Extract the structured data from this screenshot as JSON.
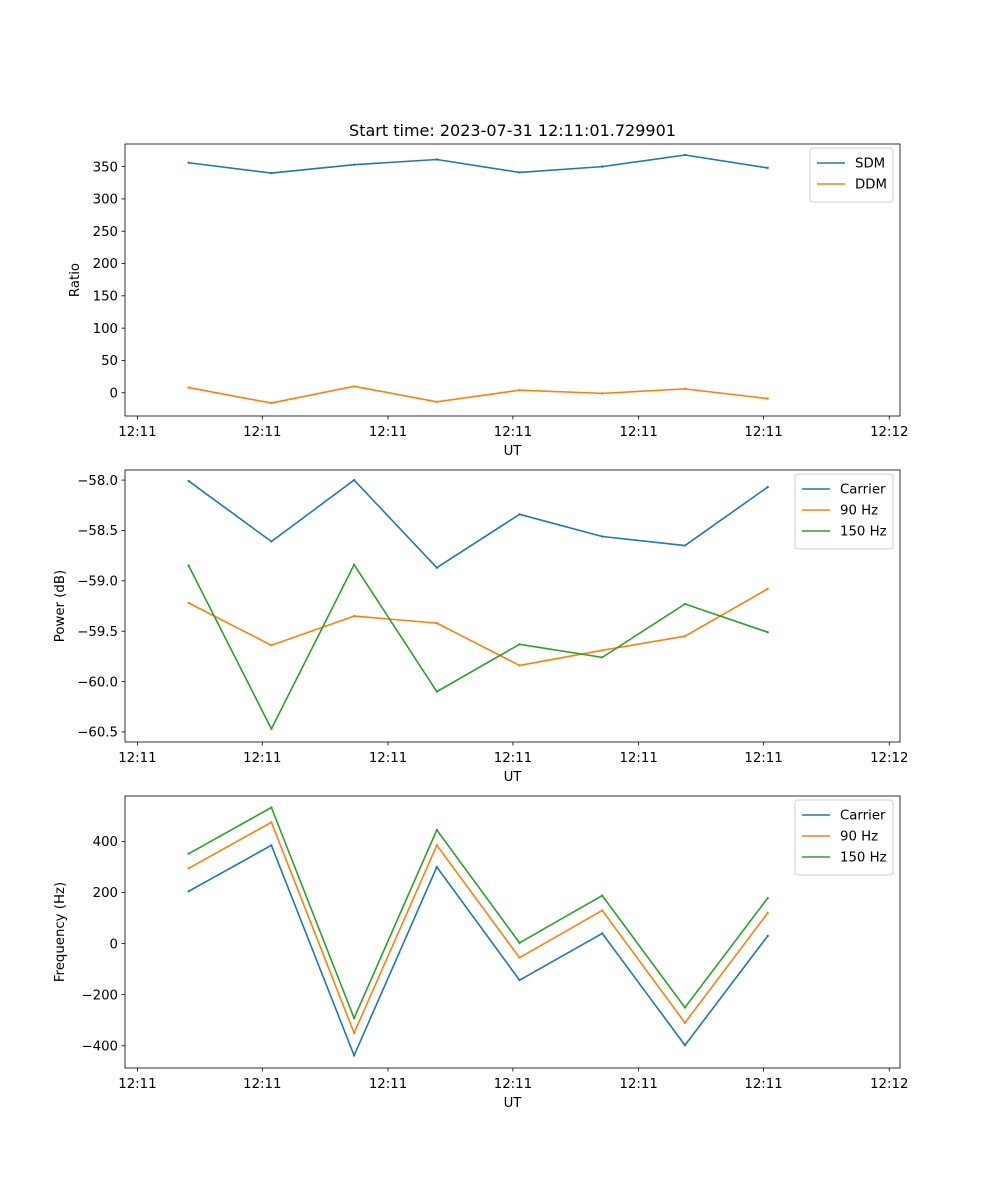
{
  "figure_title": "Start time: 2023-07-31 12:11:01.729901",
  "colors": {
    "blue": "#1f77b4",
    "orange": "#ff7f0e",
    "green": "#2ca02c"
  },
  "chart_data": [
    {
      "type": "line",
      "title": "Start time: 2023-07-31 12:11:01.729901",
      "xlabel": "UT",
      "ylabel": "Ratio",
      "xlim": [
        -0.77,
        8.6
      ],
      "ylim": [
        -36,
        385
      ],
      "xticks": [
        {
          "value": -0.62,
          "label": "12:11"
        },
        {
          "value": 0.89,
          "label": "12:11"
        },
        {
          "value": 2.41,
          "label": "12:11"
        },
        {
          "value": 3.92,
          "label": "12:11"
        },
        {
          "value": 5.44,
          "label": "12:11"
        },
        {
          "value": 6.95,
          "label": "12:11"
        },
        {
          "value": 8.47,
          "label": "12:12"
        }
      ],
      "yticks": [
        {
          "value": 0,
          "label": "0"
        },
        {
          "value": 50,
          "label": "50"
        },
        {
          "value": 100,
          "label": "100"
        },
        {
          "value": 150,
          "label": "150"
        },
        {
          "value": 200,
          "label": "200"
        },
        {
          "value": 250,
          "label": "250"
        },
        {
          "value": 300,
          "label": "300"
        },
        {
          "value": 350,
          "label": "350"
        }
      ],
      "x": [
        0,
        1,
        2,
        3,
        4,
        5,
        6,
        7
      ],
      "series": [
        {
          "name": "SDM",
          "color": "#1f77b4",
          "values": [
            356,
            340,
            353,
            361,
            341,
            350,
            368,
            348
          ]
        },
        {
          "name": "DDM",
          "color": "#ff7f0e",
          "values": [
            8,
            -16,
            10,
            -14,
            4,
            -1,
            6,
            -9
          ]
        }
      ],
      "legend": "upper right",
      "grid": false
    },
    {
      "type": "line",
      "title": "",
      "xlabel": "UT",
      "ylabel": "Power (dB)",
      "xlim": [
        -0.77,
        8.6
      ],
      "ylim": [
        -60.6,
        -57.9
      ],
      "xticks": [
        {
          "value": -0.62,
          "label": "12:11"
        },
        {
          "value": 0.89,
          "label": "12:11"
        },
        {
          "value": 2.41,
          "label": "12:11"
        },
        {
          "value": 3.92,
          "label": "12:11"
        },
        {
          "value": 5.44,
          "label": "12:11"
        },
        {
          "value": 6.95,
          "label": "12:11"
        },
        {
          "value": 8.47,
          "label": "12:12"
        }
      ],
      "yticks": [
        {
          "value": -60.5,
          "label": "−60.5"
        },
        {
          "value": -60.0,
          "label": "−60.0"
        },
        {
          "value": -59.5,
          "label": "−59.5"
        },
        {
          "value": -59.0,
          "label": "−59.0"
        },
        {
          "value": -58.5,
          "label": "−58.5"
        },
        {
          "value": -58.0,
          "label": "−58.0"
        }
      ],
      "x": [
        0,
        1,
        2,
        3,
        4,
        5,
        6,
        7
      ],
      "series": [
        {
          "name": "Carrier",
          "color": "#1f77b4",
          "values": [
            -58.01,
            -58.61,
            -58.0,
            -58.87,
            -58.34,
            -58.56,
            -58.65,
            -58.07
          ]
        },
        {
          "name": "90 Hz",
          "color": "#ff7f0e",
          "values": [
            -59.22,
            -59.64,
            -59.35,
            -59.42,
            -59.84,
            -59.69,
            -59.55,
            -59.08
          ]
        },
        {
          "name": "150 Hz",
          "color": "#2ca02c",
          "values": [
            -58.85,
            -60.47,
            -58.84,
            -60.1,
            -59.63,
            -59.76,
            -59.23,
            -59.51
          ]
        }
      ],
      "legend": "upper right",
      "grid": false
    },
    {
      "type": "line",
      "title": "",
      "xlabel": "UT",
      "ylabel": "Frequency (Hz)",
      "xlim": [
        -0.77,
        8.6
      ],
      "ylim": [
        -487,
        578
      ],
      "xticks": [
        {
          "value": -0.62,
          "label": "12:11"
        },
        {
          "value": 0.89,
          "label": "12:11"
        },
        {
          "value": 2.41,
          "label": "12:11"
        },
        {
          "value": 3.92,
          "label": "12:11"
        },
        {
          "value": 5.44,
          "label": "12:11"
        },
        {
          "value": 6.95,
          "label": "12:11"
        },
        {
          "value": 8.47,
          "label": "12:12"
        }
      ],
      "yticks": [
        {
          "value": -400,
          "label": "−400"
        },
        {
          "value": -200,
          "label": "−200"
        },
        {
          "value": 0,
          "label": "0"
        },
        {
          "value": 200,
          "label": "200"
        },
        {
          "value": 400,
          "label": "400"
        }
      ],
      "x": [
        0,
        1,
        2,
        3,
        4,
        5,
        6,
        7
      ],
      "series": [
        {
          "name": "Carrier",
          "color": "#1f77b4",
          "values": [
            205,
            385,
            -438,
            300,
            -143,
            40,
            -398,
            30
          ]
        },
        {
          "name": "90 Hz",
          "color": "#ff7f0e",
          "values": [
            295,
            475,
            -350,
            385,
            -55,
            130,
            -310,
            120
          ]
        },
        {
          "name": "150 Hz",
          "color": "#2ca02c",
          "values": [
            352,
            533,
            -292,
            445,
            3,
            188,
            -250,
            178
          ]
        }
      ],
      "legend": "upper right",
      "grid": false
    }
  ]
}
